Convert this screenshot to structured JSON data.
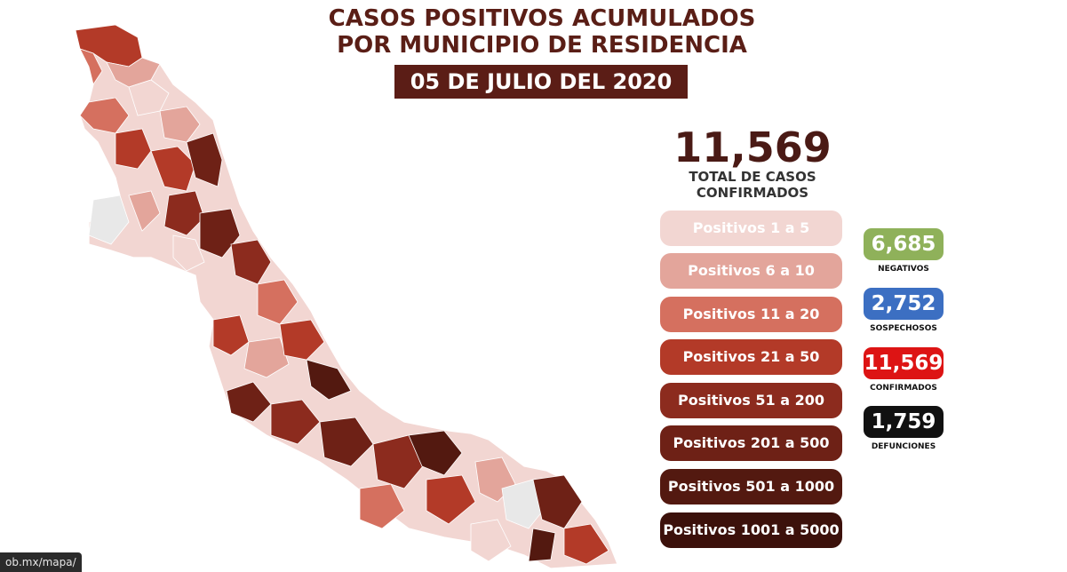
{
  "header": {
    "title_line1": "CASOS POSITIVOS ACUMULADOS",
    "title_line2": "POR MUNICIPIO DE RESIDENCIA",
    "date": "05 DE JULIO DEL 2020"
  },
  "summary": {
    "total_cases": "11,569",
    "total_label_line1": "TOTAL DE CASOS",
    "total_label_line2": "CONFIRMADOS"
  },
  "legend": [
    {
      "label": "Positivos 1 a 5",
      "color": "#f2d6d2",
      "text_color": "#ffffff"
    },
    {
      "label": "Positivos 6 a 10",
      "color": "#e3a59b",
      "text_color": "#ffffff"
    },
    {
      "label": "Positivos 11 a 20",
      "color": "#d5705f",
      "text_color": "#ffffff"
    },
    {
      "label": "Positivos 21 a 50",
      "color": "#b33a28",
      "text_color": "#ffffff"
    },
    {
      "label": "Positivos 51 a 200",
      "color": "#8c2b1e",
      "text_color": "#ffffff"
    },
    {
      "label": "Positivos 201 a 500",
      "color": "#6e2116",
      "text_color": "#ffffff"
    },
    {
      "label": "Positivos 501 a 1000",
      "color": "#531910",
      "text_color": "#ffffff"
    },
    {
      "label": "Positivos 1001 a 5000",
      "color": "#3c110b",
      "text_color": "#ffffff"
    }
  ],
  "stats": [
    {
      "value": "6,685",
      "label": "NEGATIVOS",
      "color": "#8fb15a"
    },
    {
      "value": "2,752",
      "label": "SOSPECHOSOS",
      "color": "#3c6fc2"
    },
    {
      "value": "11,569",
      "label": "CONFIRMADOS",
      "color": "#dd1414"
    },
    {
      "value": "1,759",
      "label": "DEFUNCIONES",
      "color": "#111111"
    }
  ],
  "map": {
    "state_outline_color": "#c9c9c9",
    "no_cases_color": "#e8e8e8"
  },
  "browser": {
    "status_url": "ob.mx/mapa/"
  }
}
